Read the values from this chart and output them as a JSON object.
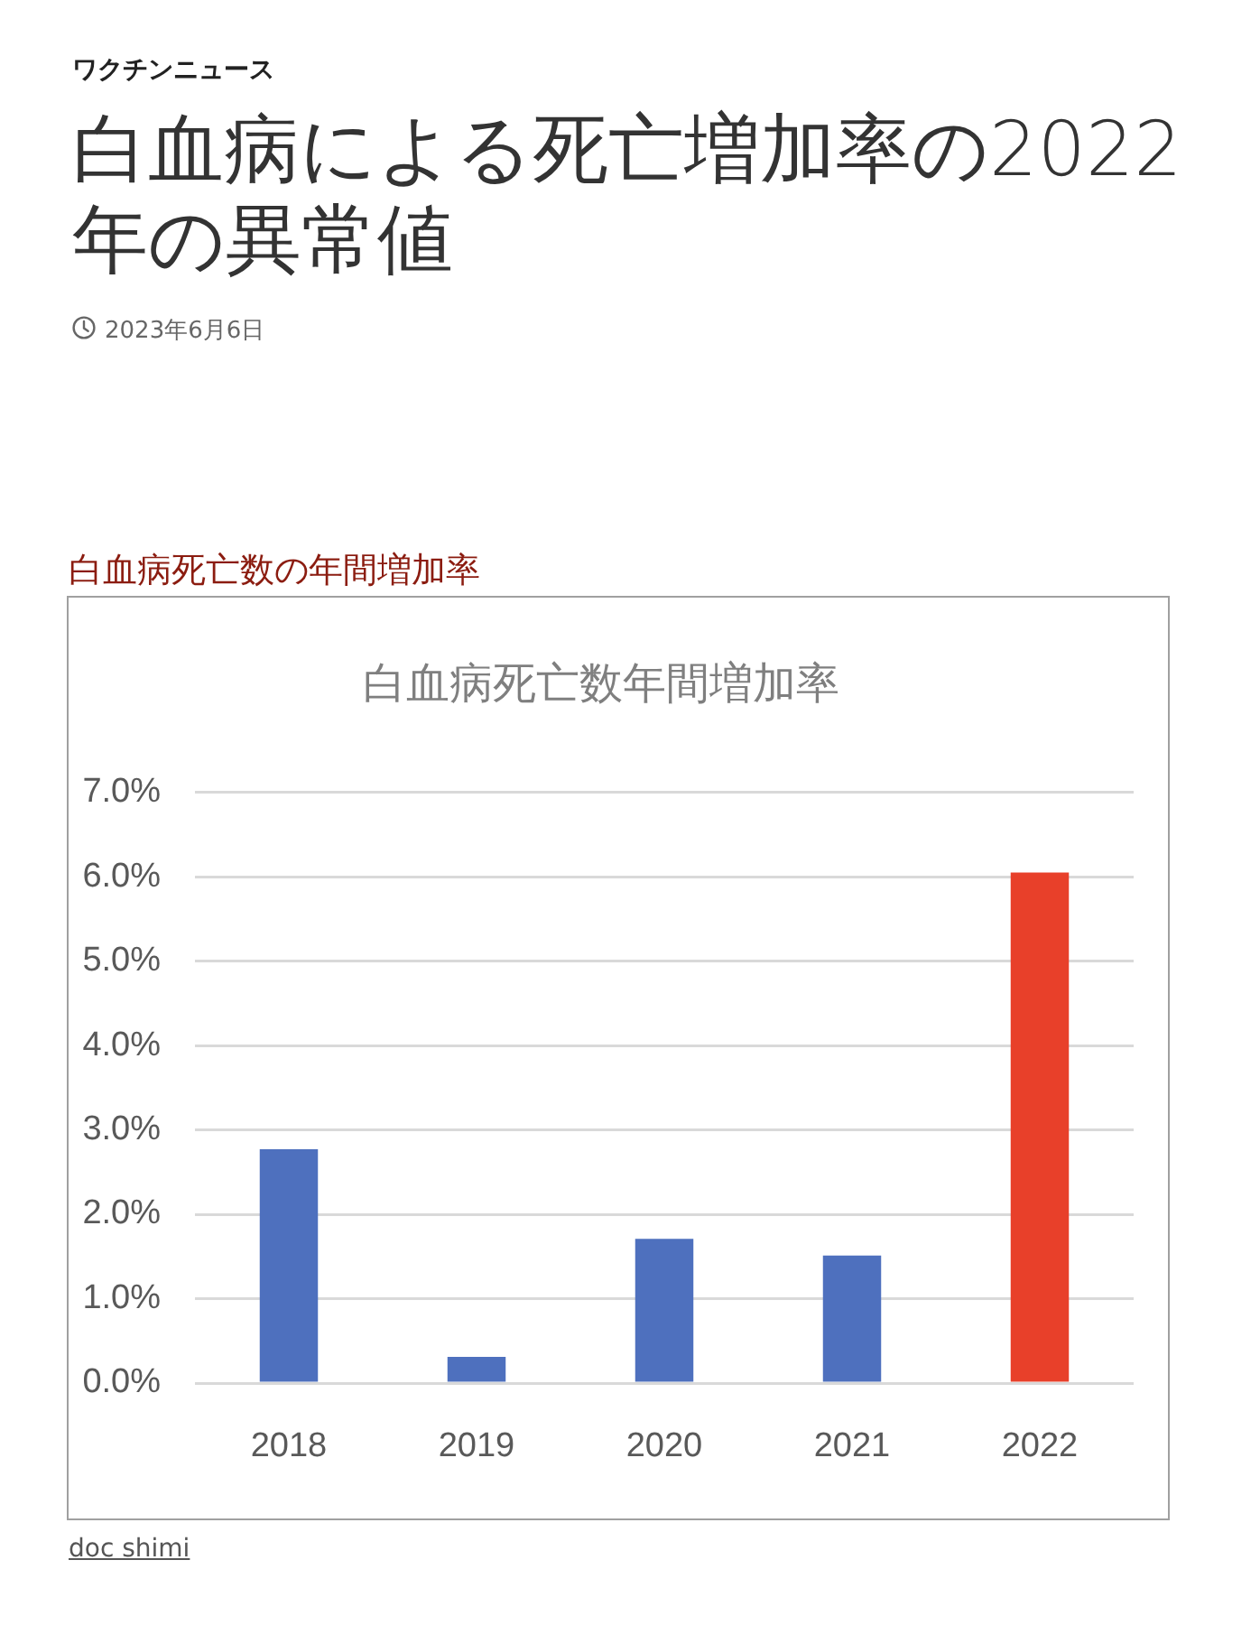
{
  "chart_data": {
    "type": "bar",
    "title": "白血病死亡数年間増加率",
    "annotations": [
      "ワクチンニュース",
      "白血病による死亡増加率の2022年の異常値",
      "2023年6月6日",
      "白血病死亡数の年間増加率",
      "doc shimi"
    ],
    "categories": [
      "2018",
      "2019",
      "2020",
      "2021",
      "2022"
    ],
    "values": [
      2.77,
      0.31,
      1.71,
      1.51,
      6.05
    ],
    "colors": [
      "#4e70be",
      "#4e70be",
      "#4e70be",
      "#4e70be",
      "#e8402a"
    ],
    "ylim": [
      0,
      7
    ],
    "yticks": [
      {
        "value": 0,
        "label": "0.0%"
      },
      {
        "value": 1,
        "label": "1.0%"
      },
      {
        "value": 2,
        "label": "2.0%"
      },
      {
        "value": 3,
        "label": "3.0%"
      },
      {
        "value": 4,
        "label": "4.0%"
      },
      {
        "value": 5,
        "label": "5.0%"
      },
      {
        "value": 6,
        "label": "6.0%"
      },
      {
        "value": 7,
        "label": "7.0%"
      }
    ],
    "grid": "y"
  }
}
